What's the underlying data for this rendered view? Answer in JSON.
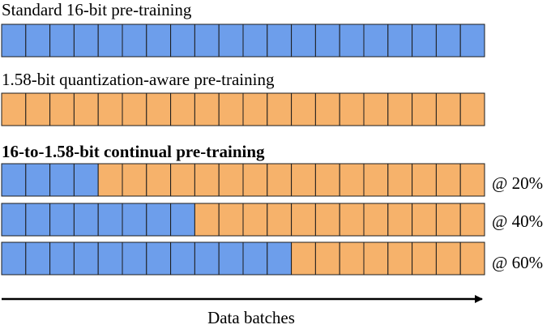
{
  "colors": {
    "fp16_cell": "#6d9eeb",
    "ternary_cell": "#f6b26b",
    "cell_border": "#1c1c1c",
    "text": "#000000"
  },
  "blocks_per_row": 20,
  "sections": {
    "standard": {
      "title": "Standard 16-bit pre-training",
      "fp16_blocks": 20
    },
    "qat": {
      "title": "1.58-bit quantization-aware pre-training",
      "fp16_blocks": 0
    },
    "continual": {
      "title": "16-to-1.58-bit continual pre-training",
      "rows": [
        {
          "label": "@ 20%",
          "switch_fraction": 0.2
        },
        {
          "label": "@ 40%",
          "switch_fraction": 0.4
        },
        {
          "label": "@ 60%",
          "switch_fraction": 0.6
        }
      ]
    }
  },
  "axis": {
    "label": "Data batches"
  }
}
